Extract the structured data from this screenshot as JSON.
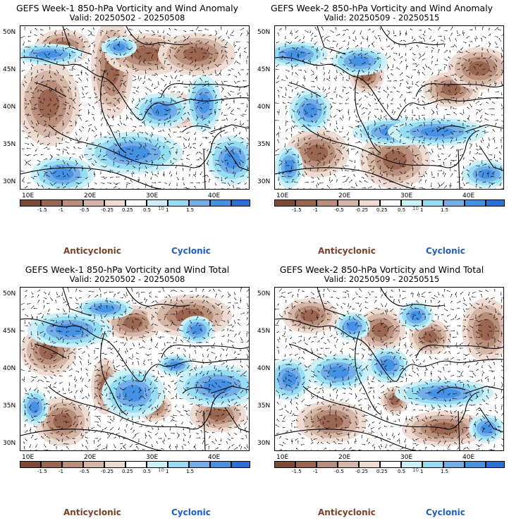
{
  "panels": [
    {
      "title": "GEFS Week-1 850-hPa Vorticity and Wind Anomaly",
      "valid": "Valid: 20250502 - 20250508"
    },
    {
      "title": "GEFS Week-2 850-hPa Vorticity and Wind Anomaly",
      "valid": "Valid: 20250509 - 20250515"
    },
    {
      "title": "GEFS Week-1 850-hPa Vorticity and Wind Total",
      "valid": "Valid: 20250502 - 20250508"
    },
    {
      "title": "GEFS Week-2 850-hPa Vorticity and Wind Total",
      "valid": "Valid: 20250509 - 20250515"
    }
  ],
  "lat_labels": [
    "50N",
    "45N",
    "40N",
    "35N",
    "30N"
  ],
  "lon_labels": [
    "10E",
    "20E",
    "30E",
    "40E"
  ],
  "colorbar": {
    "ticks": [
      "-1.5",
      "-1",
      "-0.5",
      "-0.25",
      "0.25",
      "0.5",
      "1",
      "1.5"
    ],
    "multiplier": "10",
    "colors": [
      "#7c4a35",
      "#9a6650",
      "#b98f7c",
      "#d6b6a6",
      "#eedcd2",
      "#ffffff",
      "#ccf0f8",
      "#96dcf3",
      "#73aee9",
      "#4591e3",
      "#2b70d9"
    ]
  },
  "legend": {
    "anticyclonic": "Anticyclonic",
    "cyclonic": "Cyclonic"
  },
  "colors": {
    "anticyclonic": "#7a4028",
    "cyclonic": "#1c5fc4"
  }
}
